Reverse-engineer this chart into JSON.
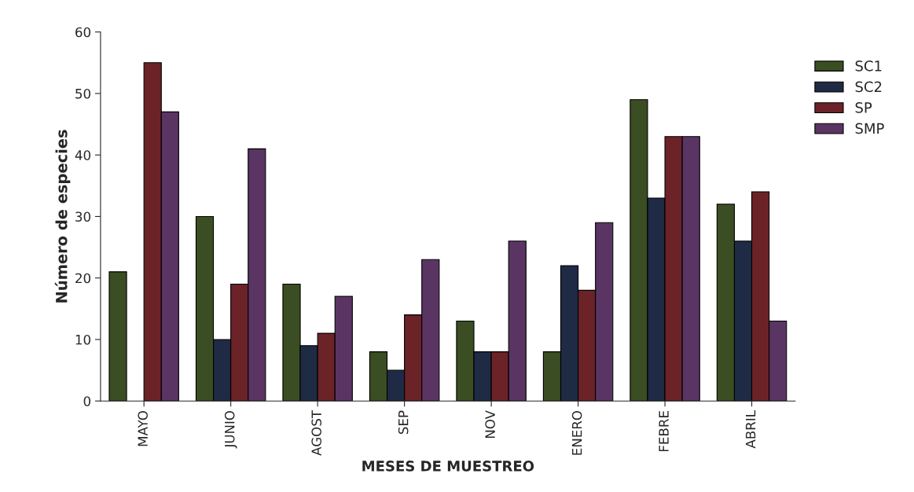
{
  "chart_data": {
    "type": "bar",
    "xlabel": "MESES DE MUESTREO",
    "ylabel": "Número de especies",
    "categories": [
      "MAYO",
      "JUNIO",
      "AGOST",
      "SEP",
      "NOV",
      "ENERO",
      "FEBRE",
      "ABRIL"
    ],
    "series": [
      {
        "name": "SC1",
        "color": "#3b4d22",
        "values": [
          21,
          30,
          19,
          8,
          13,
          8,
          49,
          32
        ]
      },
      {
        "name": "SC2",
        "color": "#1f2a44",
        "values": [
          null,
          10,
          9,
          5,
          8,
          22,
          33,
          26
        ]
      },
      {
        "name": "SP",
        "color": "#6b2328",
        "values": [
          55,
          19,
          11,
          14,
          8,
          18,
          43,
          34
        ]
      },
      {
        "name": "SMP",
        "color": "#5a3563",
        "values": [
          47,
          41,
          17,
          23,
          26,
          29,
          43,
          13
        ]
      }
    ],
    "ylim": [
      0,
      60
    ],
    "yticks": [
      0,
      10,
      20,
      30,
      40,
      50,
      60
    ],
    "grid": false,
    "legend": "right"
  }
}
